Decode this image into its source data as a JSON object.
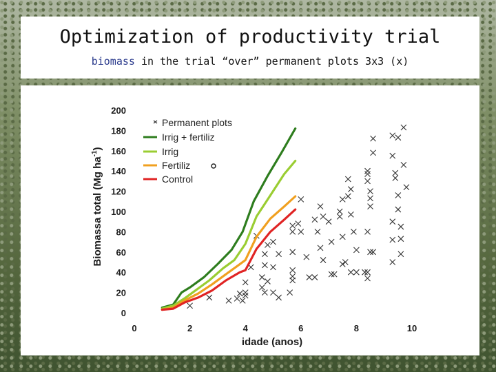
{
  "slide": {
    "title": "Optimization of productivity trial",
    "subtitle_highlight": "biomass",
    "subtitle_rest": " in the trial “over” permanent plots 3x3 (x)"
  },
  "chart_data": {
    "type": "line",
    "xlabel": "idade (anos)",
    "ylabel_main": "Biomassa total (Mg ha",
    "ylabel_sup": "-1",
    "ylabel_end": ")",
    "xlim": [
      0,
      10
    ],
    "ylim": [
      0,
      200
    ],
    "x_ticks": [
      "0",
      "2",
      "4",
      "6",
      "8",
      "10"
    ],
    "y_ticks": [
      "0",
      "20",
      "40",
      "60",
      "80",
      "100",
      "120",
      "140",
      "160",
      "180",
      "200"
    ],
    "colors": {
      "irrig_fertiliz": "#2e7d1e",
      "irrig": "#9acd32",
      "fertiliz": "#f0a020",
      "control": "#e02424",
      "scatter": "#333333"
    },
    "legend": [
      {
        "label": "Permanent plots",
        "marker": "x"
      },
      {
        "label": "Irrig + fertiliz",
        "series": "irrig_fertiliz"
      },
      {
        "label": "Irrig",
        "series": "irrig"
      },
      {
        "label": "Fertiliz",
        "series": "fertiliz",
        "note_marker": "o"
      },
      {
        "label": "Control",
        "series": "control"
      }
    ],
    "series": [
      {
        "key": "irrig_fertiliz",
        "name": "Irrig + fertiliz",
        "points": [
          [
            1.0,
            5
          ],
          [
            1.4,
            8
          ],
          [
            1.7,
            20
          ],
          [
            2.0,
            25
          ],
          [
            2.5,
            35
          ],
          [
            3.0,
            48
          ],
          [
            3.5,
            62
          ],
          [
            3.9,
            80
          ],
          [
            4.3,
            110
          ],
          [
            4.8,
            135
          ],
          [
            5.3,
            158
          ],
          [
            5.8,
            182
          ]
        ]
      },
      {
        "key": "irrig",
        "name": "Irrig",
        "points": [
          [
            1.0,
            4
          ],
          [
            1.4,
            7
          ],
          [
            1.8,
            14
          ],
          [
            2.2,
            22
          ],
          [
            2.7,
            32
          ],
          [
            3.2,
            44
          ],
          [
            3.6,
            52
          ],
          [
            4.0,
            68
          ],
          [
            4.4,
            95
          ],
          [
            4.9,
            116
          ],
          [
            5.4,
            137
          ],
          [
            5.8,
            150
          ]
        ]
      },
      {
        "key": "fertiliz",
        "name": "Fertiliz",
        "points": [
          [
            1.0,
            3
          ],
          [
            1.4,
            5
          ],
          [
            1.8,
            12
          ],
          [
            2.3,
            19
          ],
          [
            2.8,
            28
          ],
          [
            3.3,
            38
          ],
          [
            3.7,
            46
          ],
          [
            4.0,
            52
          ],
          [
            4.4,
            75
          ],
          [
            4.9,
            93
          ],
          [
            5.4,
            105
          ],
          [
            5.8,
            115
          ]
        ]
      },
      {
        "key": "control",
        "name": "Control",
        "points": [
          [
            1.0,
            3
          ],
          [
            1.4,
            4
          ],
          [
            1.8,
            10
          ],
          [
            2.3,
            15
          ],
          [
            2.8,
            22
          ],
          [
            3.3,
            32
          ],
          [
            3.8,
            40
          ],
          [
            4.0,
            42
          ],
          [
            4.4,
            63
          ],
          [
            4.9,
            80
          ],
          [
            5.4,
            92
          ],
          [
            5.8,
            102
          ]
        ]
      }
    ],
    "permanent_plots": [
      [
        2.0,
        7
      ],
      [
        2.7,
        15
      ],
      [
        3.4,
        12
      ],
      [
        3.7,
        14
      ],
      [
        3.8,
        19
      ],
      [
        4.0,
        17
      ],
      [
        3.9,
        12
      ],
      [
        4.0,
        30
      ],
      [
        4.0,
        20
      ],
      [
        4.2,
        45
      ],
      [
        4.6,
        35
      ],
      [
        4.6,
        25
      ],
      [
        4.8,
        31
      ],
      [
        5.0,
        20
      ],
      [
        4.7,
        20
      ],
      [
        5.2,
        15
      ],
      [
        4.7,
        47
      ],
      [
        5.0,
        45
      ],
      [
        4.8,
        67
      ],
      [
        4.4,
        76
      ],
      [
        4.7,
        58
      ],
      [
        5.2,
        58
      ],
      [
        5.0,
        70
      ],
      [
        5.6,
        20
      ],
      [
        5.7,
        36
      ],
      [
        5.7,
        42
      ],
      [
        5.7,
        32
      ],
      [
        5.7,
        60
      ],
      [
        6.2,
        55
      ],
      [
        5.7,
        80
      ],
      [
        5.7,
        86
      ],
      [
        5.9,
        88
      ],
      [
        6.0,
        112
      ],
      [
        6.0,
        80
      ],
      [
        6.3,
        35
      ],
      [
        6.5,
        35
      ],
      [
        6.5,
        92
      ],
      [
        6.7,
        105
      ],
      [
        6.6,
        80
      ],
      [
        6.7,
        64
      ],
      [
        6.8,
        52
      ],
      [
        7.1,
        70
      ],
      [
        7.5,
        75
      ],
      [
        7.1,
        38
      ],
      [
        7.2,
        38
      ],
      [
        6.8,
        95
      ],
      [
        7.0,
        90
      ],
      [
        7.4,
        100
      ],
      [
        7.5,
        112
      ],
      [
        7.7,
        115
      ],
      [
        7.7,
        132
      ],
      [
        7.8,
        122
      ],
      [
        7.8,
        97
      ],
      [
        7.4,
        95
      ],
      [
        7.9,
        80
      ],
      [
        7.5,
        48
      ],
      [
        7.6,
        50
      ],
      [
        7.8,
        40
      ],
      [
        8.0,
        62
      ],
      [
        8.0,
        40
      ],
      [
        8.3,
        40
      ],
      [
        8.4,
        40
      ],
      [
        8.4,
        34
      ],
      [
        8.4,
        130
      ],
      [
        8.4,
        137
      ],
      [
        8.4,
        140
      ],
      [
        8.5,
        113
      ],
      [
        8.5,
        105
      ],
      [
        8.5,
        120
      ],
      [
        8.4,
        80
      ],
      [
        8.5,
        60
      ],
      [
        8.6,
        60
      ],
      [
        8.6,
        172
      ],
      [
        8.6,
        158
      ],
      [
        9.3,
        175
      ],
      [
        9.3,
        155
      ],
      [
        9.4,
        138
      ],
      [
        9.4,
        133
      ],
      [
        9.3,
        90
      ],
      [
        9.3,
        50
      ],
      [
        9.3,
        72
      ],
      [
        9.5,
        116
      ],
      [
        9.5,
        102
      ],
      [
        9.6,
        85
      ],
      [
        9.6,
        73
      ],
      [
        9.6,
        58
      ],
      [
        9.8,
        124
      ],
      [
        9.7,
        146
      ],
      [
        9.5,
        173
      ],
      [
        9.7,
        183
      ]
    ]
  }
}
